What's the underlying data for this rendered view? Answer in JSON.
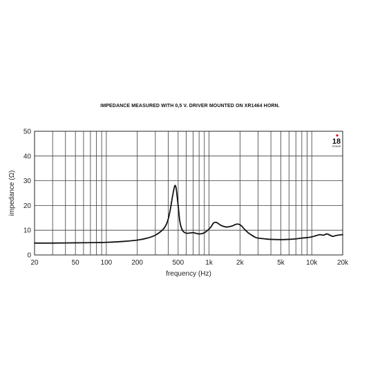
{
  "title": "IMPEDANCE MEASURED WITH 0,5 V. DRIVER MOUNTED ON XR1464 HORN.",
  "logo": {
    "number": "18",
    "brand": "SOUND",
    "color": "#e0001b"
  },
  "chart_data": {
    "type": "line",
    "title": "IMPEDANCE MEASURED WITH 0,5 V. DRIVER MOUNTED ON XR1464 HORN.",
    "xlabel": "frequency (Hz)",
    "ylabel": "impedance (Ω)",
    "xscale": "log",
    "xlim": [
      20,
      20000
    ],
    "ylim": [
      0,
      50
    ],
    "grid": true,
    "x_ticks": [
      20,
      50,
      100,
      200,
      500,
      1000,
      2000,
      5000,
      10000,
      20000
    ],
    "x_tick_labels": [
      "20",
      "50",
      "100",
      "200",
      "500",
      "1k",
      "2k",
      "5k",
      "10k",
      "20k"
    ],
    "y_ticks": [
      0,
      10,
      20,
      30,
      40,
      50
    ],
    "y_tick_labels": [
      "0",
      "10",
      "20",
      "30",
      "40",
      "50"
    ],
    "line_color": "#111111",
    "series": [
      {
        "x": [
          20,
          30,
          50,
          80,
          100,
          150,
          200,
          250,
          300,
          350,
          380,
          400,
          420,
          440,
          460,
          470,
          480,
          500,
          520,
          550,
          600,
          700,
          800,
          900,
          1000,
          1050,
          1100,
          1150,
          1200,
          1300,
          1400,
          1500,
          1600,
          1700,
          1800,
          1900,
          2000,
          2100,
          2200,
          2400,
          2600,
          2800,
          3000,
          3500,
          4000,
          5000,
          6000,
          7000,
          8000,
          9000,
          10000,
          11000,
          12000,
          13000,
          14000,
          15000,
          16000,
          17000,
          18000,
          20000
        ],
        "y": [
          4.8,
          4.8,
          4.9,
          5.0,
          5.1,
          5.5,
          6.0,
          6.8,
          8.0,
          10.0,
          12.0,
          14.5,
          18.5,
          23.5,
          27.5,
          28.0,
          26.5,
          20.0,
          13.5,
          10.0,
          8.8,
          9.0,
          8.5,
          9.0,
          10.5,
          11.5,
          12.8,
          13.2,
          13.0,
          12.0,
          11.5,
          11.3,
          11.5,
          11.8,
          12.3,
          12.5,
          12.2,
          11.5,
          10.5,
          9.0,
          8.0,
          7.2,
          6.8,
          6.5,
          6.3,
          6.2,
          6.3,
          6.5,
          6.8,
          7.0,
          7.3,
          7.8,
          8.2,
          8.0,
          8.5,
          8.0,
          7.5,
          7.8,
          8.0,
          8.2
        ]
      }
    ]
  }
}
